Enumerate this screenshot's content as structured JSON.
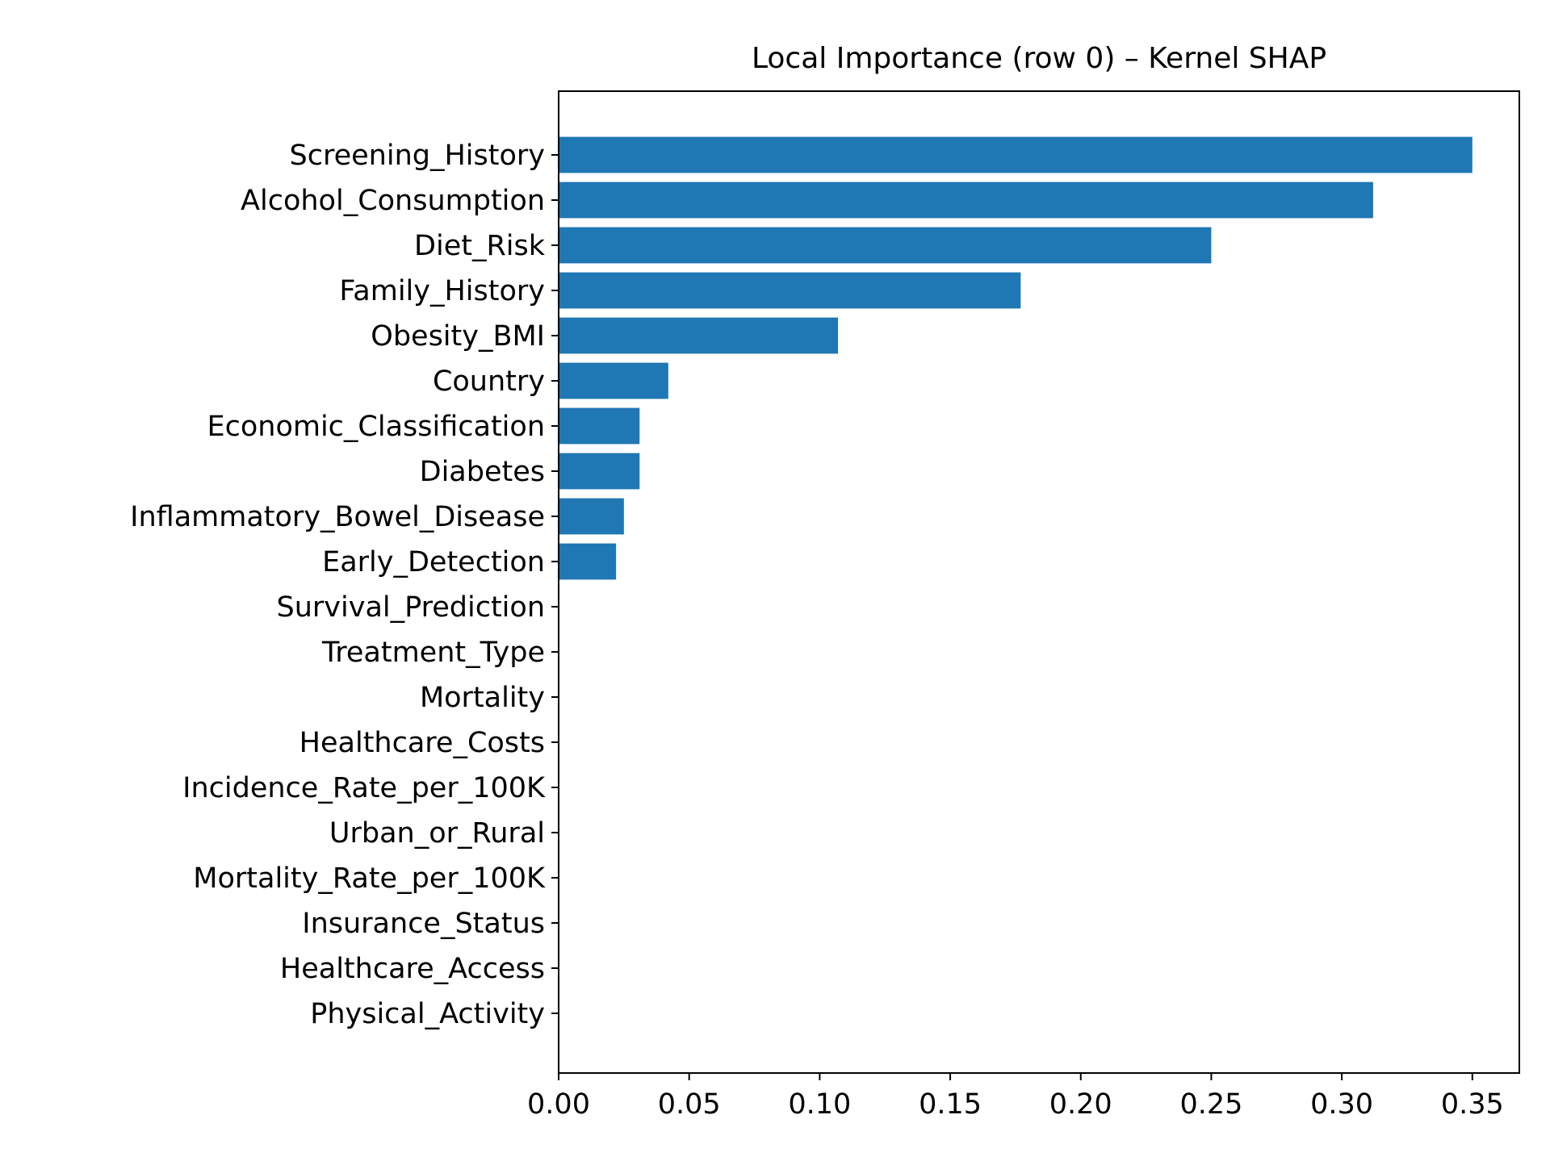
{
  "chart_data": {
    "type": "bar",
    "orientation": "horizontal",
    "title": "Local Importance (row 0) – Kernel SHAP",
    "xlabel": "",
    "ylabel": "",
    "xlim": [
      0,
      0.368
    ],
    "x_ticks": [
      0.0,
      0.05,
      0.1,
      0.15,
      0.2,
      0.25,
      0.3,
      0.35
    ],
    "x_tick_labels": [
      "0.00",
      "0.05",
      "0.10",
      "0.15",
      "0.20",
      "0.25",
      "0.30",
      "0.35"
    ],
    "grid": false,
    "legend": "none",
    "bar_color": "#1f77b4",
    "categories": [
      "Screening_History",
      "Alcohol_Consumption",
      "Diet_Risk",
      "Family_History",
      "Obesity_BMI",
      "Country",
      "Economic_Classification",
      "Diabetes",
      "Inflammatory_Bowel_Disease",
      "Early_Detection",
      "Survival_Prediction",
      "Treatment_Type",
      "Mortality",
      "Healthcare_Costs",
      "Incidence_Rate_per_100K",
      "Urban_or_Rural",
      "Mortality_Rate_per_100K",
      "Insurance_Status",
      "Healthcare_Access",
      "Physical_Activity"
    ],
    "values": [
      0.35,
      0.312,
      0.25,
      0.177,
      0.107,
      0.042,
      0.031,
      0.031,
      0.025,
      0.022,
      0,
      0,
      0,
      0,
      0,
      0,
      0,
      0,
      0,
      0
    ]
  }
}
